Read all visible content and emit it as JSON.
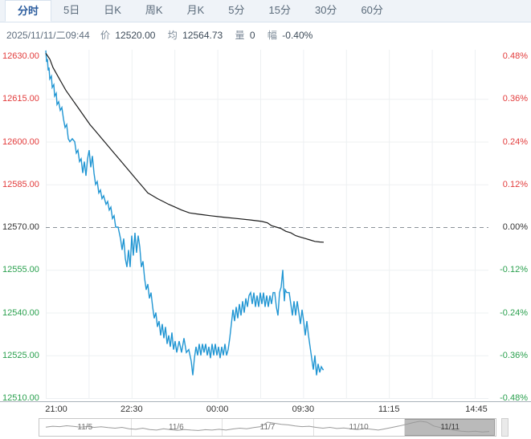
{
  "tabs": {
    "items": [
      {
        "label": "分时",
        "active": true
      },
      {
        "label": "5日",
        "active": false
      },
      {
        "label": "日K",
        "active": false
      },
      {
        "label": "周K",
        "active": false
      },
      {
        "label": "月K",
        "active": false
      },
      {
        "label": "5分",
        "active": false
      },
      {
        "label": "15分",
        "active": false
      },
      {
        "label": "30分",
        "active": false
      },
      {
        "label": "60分",
        "active": false
      }
    ]
  },
  "info": {
    "datetime": "2025/11/11/二09:44",
    "price_label": "价",
    "price": "12520.00",
    "avg_label": "均",
    "avg": "12564.73",
    "vol_label": "量",
    "vol": "0",
    "range_label": "幅",
    "range": "-0.40%"
  },
  "colors": {
    "up": "#e23b3b",
    "down": "#2aa04e",
    "flat": "#333333",
    "price_line": "#2196d3",
    "avg_line": "#1c1c1c",
    "grid": "#edf0f2",
    "baseline_dash": "#8a9299",
    "nav_wave": "#9a9a9a"
  },
  "chart_data": {
    "type": "line",
    "title": "intraday minute chart (分时)",
    "ylim": [
      12510,
      12630
    ],
    "baseline": 12570,
    "grid": true,
    "y_axis_left_labels": [
      "12630.00",
      "12615.00",
      "12600.00",
      "12585.00",
      "12570.00",
      "12555.00",
      "12540.00",
      "12525.00",
      "12510.00"
    ],
    "y_axis_right_labels": [
      "0.48%",
      "0.36%",
      "0.24%",
      "0.12%",
      "0.00%",
      "-0.12%",
      "-0.24%",
      "-0.36%",
      "-0.48%"
    ],
    "x_axis_labels": [
      "21:00",
      "22:30",
      "00:00",
      "09:30",
      "11:15",
      "14:45"
    ],
    "series": [
      {
        "name": "price",
        "points": [
          [
            57,
            12632
          ],
          [
            58,
            12628
          ],
          [
            59,
            12629
          ],
          [
            60,
            12625
          ],
          [
            61,
            12626
          ],
          [
            62,
            12622
          ],
          [
            64,
            12623
          ],
          [
            65,
            12619
          ],
          [
            67,
            12620
          ],
          [
            68,
            12616
          ],
          [
            70,
            12617
          ],
          [
            71,
            12613
          ],
          [
            73,
            12614
          ],
          [
            75,
            12611
          ],
          [
            77,
            12612
          ],
          [
            79,
            12608
          ],
          [
            81,
            12605
          ],
          [
            83,
            12606
          ],
          [
            85,
            12601
          ],
          [
            87,
            12600
          ],
          [
            90,
            12601
          ],
          [
            93,
            12600
          ],
          [
            95,
            12596
          ],
          [
            97,
            12597
          ],
          [
            99,
            12593
          ],
          [
            101,
            12594
          ],
          [
            103,
            12589
          ],
          [
            105,
            12593
          ],
          [
            107,
            12588
          ],
          [
            109,
            12594
          ],
          [
            111,
            12597
          ],
          [
            113,
            12591
          ],
          [
            115,
            12595
          ],
          [
            117,
            12589
          ],
          [
            119,
            12585
          ],
          [
            121,
            12586
          ],
          [
            123,
            12582
          ],
          [
            125,
            12583
          ],
          [
            127,
            12580
          ],
          [
            129,
            12581
          ],
          [
            132,
            12578
          ],
          [
            134,
            12579
          ],
          [
            136,
            12576
          ],
          [
            138,
            12577
          ],
          [
            140,
            12573
          ],
          [
            142,
            12574
          ],
          [
            144,
            12570
          ],
          [
            147,
            12570
          ],
          [
            150,
            12566
          ],
          [
            152,
            12562
          ],
          [
            154,
            12566
          ],
          [
            156,
            12559
          ],
          [
            158,
            12556
          ],
          [
            160,
            12562
          ],
          [
            162,
            12556
          ],
          [
            164,
            12567
          ],
          [
            166,
            12560
          ],
          [
            168,
            12568
          ],
          [
            170,
            12561
          ],
          [
            172,
            12567
          ],
          [
            174,
            12563
          ],
          [
            176,
            12556
          ],
          [
            178,
            12558
          ],
          [
            180,
            12552
          ],
          [
            182,
            12548
          ],
          [
            184,
            12550
          ],
          [
            186,
            12545
          ],
          [
            188,
            12547
          ],
          [
            190,
            12542
          ],
          [
            192,
            12538
          ],
          [
            194,
            12540
          ],
          [
            196,
            12535
          ],
          [
            198,
            12537
          ],
          [
            200,
            12532
          ],
          [
            202,
            12536
          ],
          [
            204,
            12531
          ],
          [
            206,
            12535
          ],
          [
            208,
            12529
          ],
          [
            210,
            12532
          ],
          [
            212,
            12528
          ],
          [
            214,
            12533
          ],
          [
            216,
            12527
          ],
          [
            218,
            12530
          ],
          [
            220,
            12526
          ],
          [
            223,
            12530
          ],
          [
            226,
            12526
          ],
          [
            229,
            12531
          ],
          [
            232,
            12526
          ],
          [
            235,
            12527
          ],
          [
            238,
            12523
          ],
          [
            240,
            12518
          ],
          [
            242,
            12524
          ],
          [
            244,
            12528
          ],
          [
            246,
            12525
          ],
          [
            248,
            12529
          ],
          [
            250,
            12525
          ],
          [
            252,
            12529
          ],
          [
            254,
            12526
          ],
          [
            256,
            12529
          ],
          [
            258,
            12525
          ],
          [
            260,
            12528
          ],
          [
            262,
            12524
          ],
          [
            264,
            12529
          ],
          [
            266,
            12525
          ],
          [
            268,
            12529
          ],
          [
            270,
            12525
          ],
          [
            272,
            12528
          ],
          [
            274,
            12524
          ],
          [
            276,
            12528
          ],
          [
            278,
            12525
          ],
          [
            280,
            12529
          ],
          [
            282,
            12525
          ],
          [
            284,
            12527
          ],
          [
            286,
            12531
          ],
          [
            288,
            12536
          ],
          [
            290,
            12541
          ],
          [
            292,
            12537
          ],
          [
            294,
            12542
          ],
          [
            296,
            12538
          ],
          [
            298,
            12543
          ],
          [
            300,
            12539
          ],
          [
            302,
            12544
          ],
          [
            304,
            12540
          ],
          [
            306,
            12545
          ],
          [
            308,
            12542
          ],
          [
            310,
            12546
          ],
          [
            312,
            12547
          ],
          [
            314,
            12543
          ],
          [
            316,
            12547
          ],
          [
            318,
            12542
          ],
          [
            320,
            12546
          ],
          [
            322,
            12542
          ],
          [
            324,
            12547
          ],
          [
            326,
            12543
          ],
          [
            328,
            12547
          ],
          [
            330,
            12542
          ],
          [
            332,
            12546
          ],
          [
            334,
            12542
          ],
          [
            336,
            12546
          ],
          [
            338,
            12543
          ],
          [
            340,
            12547
          ],
          [
            342,
            12547
          ],
          [
            344,
            12542
          ],
          [
            346,
            12539
          ],
          [
            348,
            12547
          ],
          [
            350,
            12549
          ],
          [
            352,
            12555
          ],
          [
            353,
            12549
          ],
          [
            354,
            12544
          ],
          [
            355,
            12548
          ],
          [
            357,
            12547
          ],
          [
            360,
            12547
          ],
          [
            362,
            12543
          ],
          [
            364,
            12539
          ],
          [
            366,
            12544
          ],
          [
            368,
            12539
          ],
          [
            370,
            12544
          ],
          [
            372,
            12540
          ],
          [
            374,
            12536
          ],
          [
            376,
            12541
          ],
          [
            378,
            12537
          ],
          [
            380,
            12532
          ],
          [
            382,
            12537
          ],
          [
            384,
            12532
          ],
          [
            386,
            12528
          ],
          [
            388,
            12524
          ],
          [
            390,
            12520
          ],
          [
            392,
            12525
          ],
          [
            394,
            12518
          ],
          [
            396,
            12522
          ],
          [
            398,
            12519
          ],
          [
            400,
            12521
          ],
          [
            402,
            12520
          ],
          [
            403,
            12520
          ]
        ]
      },
      {
        "name": "average",
        "points": [
          [
            57,
            12631
          ],
          [
            62,
            12629
          ],
          [
            66,
            12626
          ],
          [
            70,
            12624
          ],
          [
            74,
            12622
          ],
          [
            78,
            12620
          ],
          [
            82,
            12618
          ],
          [
            87,
            12616
          ],
          [
            92,
            12614
          ],
          [
            97,
            12612
          ],
          [
            102,
            12610
          ],
          [
            107,
            12608
          ],
          [
            112,
            12606
          ],
          [
            118,
            12604
          ],
          [
            124,
            12602
          ],
          [
            130,
            12600
          ],
          [
            136,
            12598
          ],
          [
            142,
            12596
          ],
          [
            148,
            12594
          ],
          [
            154,
            12592
          ],
          [
            160,
            12590
          ],
          [
            166,
            12588
          ],
          [
            172,
            12586
          ],
          [
            178,
            12584
          ],
          [
            184,
            12582
          ],
          [
            190,
            12581
          ],
          [
            196,
            12580
          ],
          [
            203,
            12579
          ],
          [
            210,
            12578
          ],
          [
            218,
            12577
          ],
          [
            226,
            12576
          ],
          [
            236,
            12575
          ],
          [
            248,
            12574.5
          ],
          [
            262,
            12574
          ],
          [
            278,
            12573.5
          ],
          [
            295,
            12573
          ],
          [
            312,
            12572.5
          ],
          [
            326,
            12572
          ],
          [
            333,
            12571.5
          ],
          [
            338,
            12570.5
          ],
          [
            344,
            12570
          ],
          [
            350,
            12569.5
          ],
          [
            356,
            12568.5
          ],
          [
            362,
            12568
          ],
          [
            368,
            12567
          ],
          [
            374,
            12566.5
          ],
          [
            380,
            12566
          ],
          [
            386,
            12565.5
          ],
          [
            392,
            12565
          ],
          [
            398,
            12564.8
          ],
          [
            403,
            12564.7
          ]
        ]
      }
    ]
  },
  "navigator": {
    "dates": [
      "11/5",
      "11/6",
      "11/7",
      "11/10",
      "11/11"
    ],
    "selected_index": 4,
    "selected_label": "11/11",
    "wave": [
      0.52,
      0.58,
      0.55,
      0.62,
      0.57,
      0.52,
      0.56,
      0.5,
      0.54,
      0.48,
      0.44,
      0.5,
      0.4,
      0.36,
      0.44,
      0.34,
      0.3,
      0.4,
      0.33,
      0.28,
      0.34,
      0.3,
      0.27,
      0.33,
      0.3,
      0.36,
      0.3,
      0.38,
      0.44,
      0.4,
      0.48,
      0.55,
      0.88,
      0.8,
      0.72,
      0.68,
      0.6,
      0.55,
      0.58,
      0.5,
      0.44,
      0.5,
      0.42,
      0.46,
      0.4,
      0.34,
      0.42,
      0.36,
      0.3,
      0.4,
      0.5,
      0.6,
      0.72,
      0.85,
      0.95,
      0.88,
      0.6,
      0.48,
      0.38,
      0.28,
      0.22,
      0.18,
      0.22,
      0.16,
      0.2
    ]
  }
}
